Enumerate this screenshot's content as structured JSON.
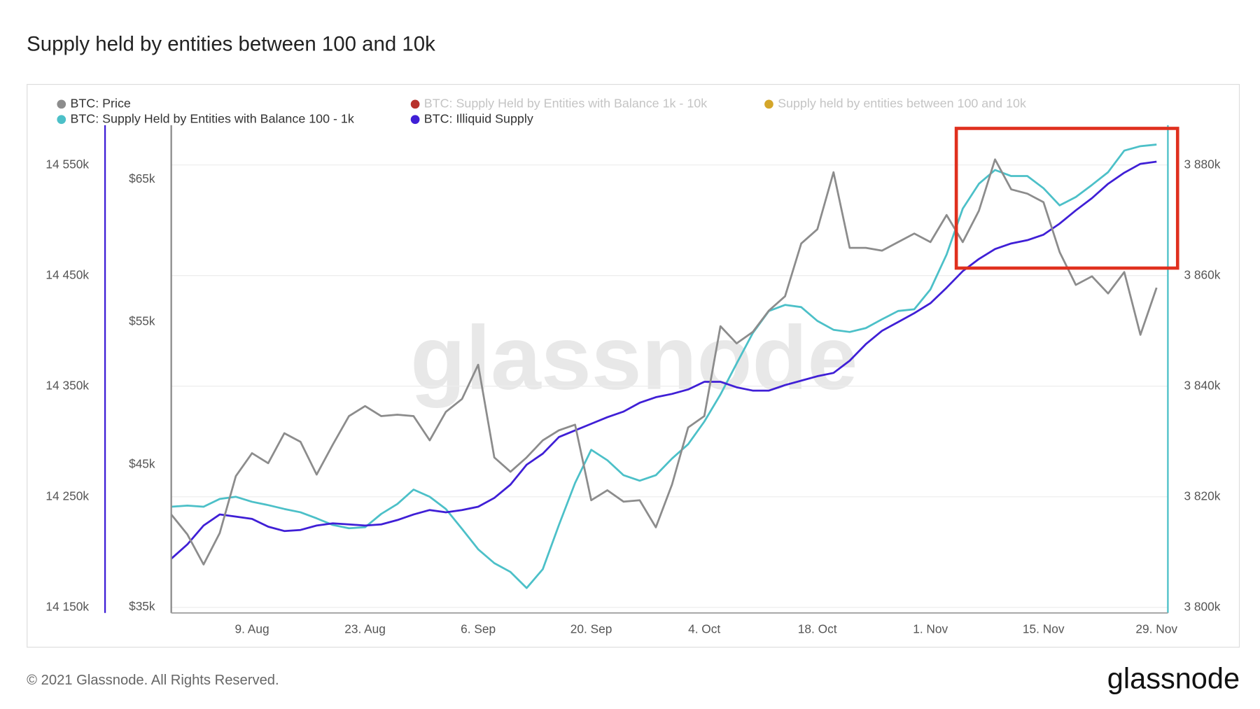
{
  "chart_data": {
    "type": "line",
    "title": "Supply held by entities between 100 and 10k",
    "watermark": "glassnode",
    "copyright": "© 2021 Glassnode. All Rights Reserved.",
    "logo": "glassnode",
    "x": [
      null,
      null,
      null,
      null,
      null,
      "9. Aug",
      null,
      null,
      null,
      null,
      null,
      null,
      "23. Aug",
      null,
      null,
      null,
      null,
      null,
      null,
      "6. Sep",
      null,
      null,
      null,
      null,
      null,
      null,
      "20. Sep",
      null,
      null,
      null,
      null,
      null,
      null,
      "4. Oct",
      null,
      null,
      null,
      null,
      null,
      null,
      "18. Oct",
      null,
      null,
      null,
      null,
      null,
      null,
      "1. Nov",
      null,
      null,
      null,
      null,
      null,
      null,
      "15. Nov",
      null,
      null,
      null,
      null,
      null,
      null,
      "29. Nov"
    ],
    "series": [
      {
        "name": "BTC: Price",
        "color": "#8c8c8c",
        "axis": "y",
        "values": [
          41.5,
          40.1,
          38.0,
          40.2,
          44.2,
          45.8,
          45.1,
          47.2,
          46.6,
          44.3,
          46.4,
          48.4,
          49.1,
          48.4,
          48.5,
          48.4,
          46.7,
          48.7,
          49.6,
          52.0,
          45.5,
          44.5,
          45.5,
          46.7,
          47.4,
          47.8,
          42.5,
          43.2,
          42.4,
          42.5,
          40.6,
          43.6,
          47.6,
          48.4,
          54.7,
          53.5,
          54.3,
          55.8,
          56.8,
          60.5,
          61.5,
          65.5,
          60.2,
          60.2,
          60.0,
          60.6,
          61.2,
          60.6,
          62.5,
          60.6,
          62.8,
          66.4,
          64.3,
          64.0,
          63.4,
          59.9,
          57.6,
          58.2,
          57.0,
          58.5,
          54.1,
          57.4
        ]
      },
      {
        "name": "BTC: Supply Held by Entities with Balance 100 - 1k",
        "color": "#4cc0c8",
        "axis": "y2",
        "values": [
          3818.2,
          3818.4,
          3818.2,
          3819.6,
          3820.0,
          3819.1,
          3818.5,
          3817.8,
          3817.2,
          3816.1,
          3814.9,
          3814.3,
          3814.5,
          3816.9,
          3818.7,
          3821.3,
          3820.0,
          3817.8,
          3814.2,
          3810.5,
          3808.0,
          3806.4,
          3803.5,
          3806.9,
          3814.9,
          3822.5,
          3828.5,
          3826.6,
          3823.9,
          3822.9,
          3823.9,
          3826.9,
          3829.5,
          3833.6,
          3838.5,
          3844.1,
          3849.6,
          3853.6,
          3854.7,
          3854.3,
          3851.8,
          3850.2,
          3849.8,
          3850.5,
          3852.1,
          3853.6,
          3853.9,
          3857.5,
          3863.8,
          3872.1,
          3876.6,
          3879.1,
          3878.0,
          3878.0,
          3875.8,
          3872.7,
          3874.2,
          3876.4,
          3878.7,
          3882.6,
          3883.4,
          3883.7
        ]
      },
      {
        "name": "BTC: Illiquid Supply",
        "color": "#3f1fd6",
        "axis": "y3",
        "values": [
          14194,
          14207,
          14224,
          14234,
          14232,
          14230,
          14223,
          14219,
          14220,
          14224,
          14226,
          14225,
          14224,
          14225,
          14229,
          14234,
          14238,
          14236,
          14238,
          14241,
          14249,
          14261,
          14279,
          14289,
          14304,
          14310,
          14316,
          14322,
          14327,
          14335,
          14340,
          14343,
          14347,
          14354,
          14354,
          14349,
          14346,
          14346,
          14351,
          14355,
          14359,
          14362,
          14373,
          14388,
          14400,
          14408,
          14416,
          14425,
          14439,
          14454,
          14465,
          14474,
          14479,
          14482,
          14487,
          14497,
          14509,
          14520,
          14533,
          14543,
          14551,
          14553
        ]
      }
    ],
    "hidden_series": [
      {
        "name": "BTC: Supply Held by Entities with Balance 1k - 10k",
        "color": "#b8322b"
      },
      {
        "name": "Supply held by entities between 100 and 10k",
        "color": "#d4a62a"
      }
    ],
    "ylim": [
      34.6,
      68.8
    ],
    "yticks": [
      {
        "value": 35,
        "label": "$35k"
      },
      {
        "value": 45,
        "label": "$45k"
      },
      {
        "value": 55,
        "label": "$55k"
      },
      {
        "value": 65,
        "label": "$65k"
      }
    ],
    "y2lim": [
      3799,
      3887.2
    ],
    "y2ticks": [
      {
        "value": 3800,
        "label": "3 800k"
      },
      {
        "value": 3820,
        "label": "3 820k"
      },
      {
        "value": 3840,
        "label": "3 840k"
      },
      {
        "value": 3860,
        "label": "3 860k"
      },
      {
        "value": 3880,
        "label": "3 880k"
      }
    ],
    "y3lim": [
      14145,
      14586
    ],
    "y3ticks": [
      {
        "value": 14150,
        "label": "14 150k"
      },
      {
        "value": 14250,
        "label": "14 250k"
      },
      {
        "value": 14350,
        "label": "14 350k"
      },
      {
        "value": 14450,
        "label": "14 450k"
      },
      {
        "value": 14550,
        "label": "14 550k"
      }
    ],
    "grid": true
  }
}
